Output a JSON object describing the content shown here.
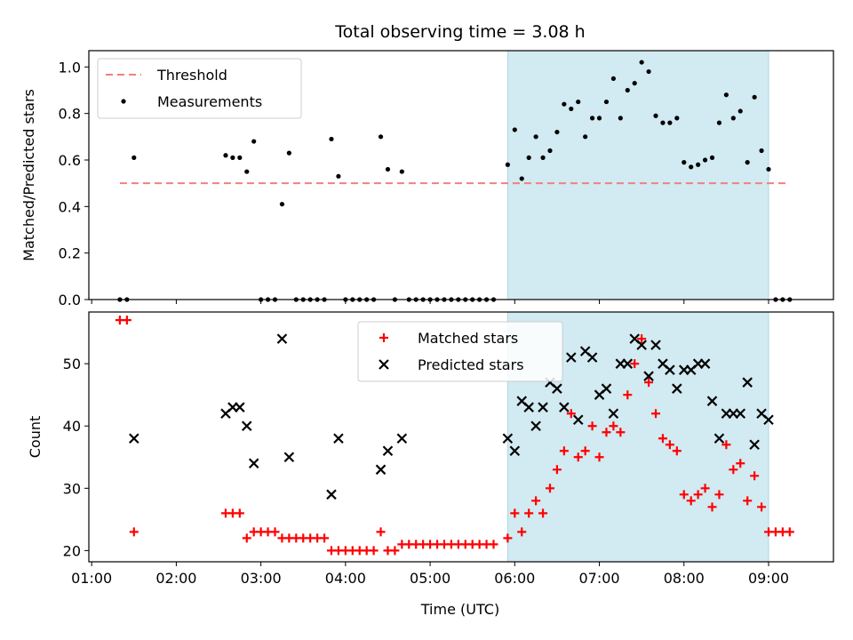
{
  "chart_data": {
    "title": "Total observing time = 3.08 h",
    "xlabel": "Time (UTC)",
    "x_unit": "hours UTC",
    "xlim": [
      "00:58",
      "09:46"
    ],
    "xticks": [
      {
        "t": "01:00",
        "label": "01:00"
      },
      {
        "t": "02:00",
        "label": "02:00"
      },
      {
        "t": "03:00",
        "label": "03:00"
      },
      {
        "t": "04:00",
        "label": "04:00"
      },
      {
        "t": "05:00",
        "label": "05:00"
      },
      {
        "t": "06:00",
        "label": "06:00"
      },
      {
        "t": "07:00",
        "label": "07:00"
      },
      {
        "t": "08:00",
        "label": "08:00"
      },
      {
        "t": "09:00",
        "label": "09:00"
      }
    ],
    "shaded_span": {
      "start": "05:55",
      "end": "09:00",
      "color": "#add8e6"
    },
    "colors": {
      "threshold": "#f08080",
      "measurements": "#000000",
      "matched": "#ff0000",
      "predicted": "#000000"
    },
    "panels": [
      {
        "type": "scatter",
        "ylabel": "Matched/Predicted stars",
        "ylim": [
          0,
          1.07
        ],
        "yticks": [
          {
            "v": 0,
            "label": "0.0"
          },
          {
            "v": 0.2,
            "label": "0.2"
          },
          {
            "v": 0.4,
            "label": "0.4"
          },
          {
            "v": 0.6,
            "label": "0.6"
          },
          {
            "v": 0.8,
            "label": "0.8"
          },
          {
            "v": 1.0,
            "label": "1.0"
          }
        ],
        "legend": {
          "position": "upper left",
          "entries": [
            "Threshold",
            "Measurements"
          ]
        },
        "threshold": {
          "name": "Threshold",
          "y": 0.5,
          "x_range": [
            "01:20",
            "09:13"
          ]
        },
        "series": [
          {
            "name": "Measurements",
            "marker": "dot",
            "points": [
              [
                "01:20",
                0.0
              ],
              [
                "01:25",
                0.0
              ],
              [
                "01:30",
                0.61
              ],
              [
                "02:35",
                0.62
              ],
              [
                "02:40",
                0.61
              ],
              [
                "02:45",
                0.61
              ],
              [
                "02:50",
                0.55
              ],
              [
                "02:55",
                0.68
              ],
              [
                "03:00",
                0.0
              ],
              [
                "03:05",
                0.0
              ],
              [
                "03:10",
                0.0
              ],
              [
                "03:15",
                0.41
              ],
              [
                "03:20",
                0.63
              ],
              [
                "03:25",
                0.0
              ],
              [
                "03:30",
                0.0
              ],
              [
                "03:35",
                0.0
              ],
              [
                "03:40",
                0.0
              ],
              [
                "03:45",
                0.0
              ],
              [
                "03:50",
                0.69
              ],
              [
                "03:55",
                0.53
              ],
              [
                "04:00",
                0.0
              ],
              [
                "04:05",
                0.0
              ],
              [
                "04:10",
                0.0
              ],
              [
                "04:15",
                0.0
              ],
              [
                "04:20",
                0.0
              ],
              [
                "04:25",
                0.7
              ],
              [
                "04:30",
                0.56
              ],
              [
                "04:35",
                0.0
              ],
              [
                "04:40",
                0.55
              ],
              [
                "04:45",
                0.0
              ],
              [
                "04:50",
                0.0
              ],
              [
                "04:55",
                0.0
              ],
              [
                "05:00",
                0.0
              ],
              [
                "05:05",
                0.0
              ],
              [
                "05:10",
                0.0
              ],
              [
                "05:15",
                0.0
              ],
              [
                "05:20",
                0.0
              ],
              [
                "05:25",
                0.0
              ],
              [
                "05:30",
                0.0
              ],
              [
                "05:35",
                0.0
              ],
              [
                "05:40",
                0.0
              ],
              [
                "05:45",
                0.0
              ],
              [
                "05:55",
                0.58
              ],
              [
                "06:00",
                0.73
              ],
              [
                "06:05",
                0.52
              ],
              [
                "06:10",
                0.61
              ],
              [
                "06:15",
                0.7
              ],
              [
                "06:20",
                0.61
              ],
              [
                "06:25",
                0.64
              ],
              [
                "06:30",
                0.72
              ],
              [
                "06:35",
                0.84
              ],
              [
                "06:40",
                0.82
              ],
              [
                "06:45",
                0.85
              ],
              [
                "06:50",
                0.7
              ],
              [
                "06:55",
                0.78
              ],
              [
                "07:00",
                0.78
              ],
              [
                "07:05",
                0.85
              ],
              [
                "07:10",
                0.95
              ],
              [
                "07:15",
                0.78
              ],
              [
                "07:20",
                0.9
              ],
              [
                "07:25",
                0.93
              ],
              [
                "07:30",
                1.02
              ],
              [
                "07:35",
                0.98
              ],
              [
                "07:40",
                0.79
              ],
              [
                "07:45",
                0.76
              ],
              [
                "07:50",
                0.76
              ],
              [
                "07:55",
                0.78
              ],
              [
                "08:00",
                0.59
              ],
              [
                "08:05",
                0.57
              ],
              [
                "08:10",
                0.58
              ],
              [
                "08:15",
                0.6
              ],
              [
                "08:20",
                0.61
              ],
              [
                "08:25",
                0.76
              ],
              [
                "08:30",
                0.88
              ],
              [
                "08:35",
                0.78
              ],
              [
                "08:40",
                0.81
              ],
              [
                "08:45",
                0.59
              ],
              [
                "08:50",
                0.87
              ],
              [
                "08:55",
                0.64
              ],
              [
                "09:00",
                0.56
              ],
              [
                "09:05",
                0.0
              ],
              [
                "09:10",
                0.0
              ],
              [
                "09:15",
                0.0
              ]
            ]
          }
        ]
      },
      {
        "type": "scatter",
        "ylabel": "Count",
        "ylim": [
          18.2,
          58.3
        ],
        "yticks": [
          {
            "v": 20,
            "label": "20"
          },
          {
            "v": 30,
            "label": "30"
          },
          {
            "v": 40,
            "label": "40"
          },
          {
            "v": 50,
            "label": "50"
          }
        ],
        "legend": {
          "position": "upper center",
          "entries": [
            "Matched stars",
            "Predicted stars"
          ]
        },
        "series": [
          {
            "name": "Matched stars",
            "marker": "plus",
            "points": [
              [
                "01:20",
                57
              ],
              [
                "01:25",
                57
              ],
              [
                "01:30",
                23
              ],
              [
                "02:35",
                26
              ],
              [
                "02:40",
                26
              ],
              [
                "02:45",
                26
              ],
              [
                "02:50",
                22
              ],
              [
                "02:55",
                23
              ],
              [
                "03:00",
                23
              ],
              [
                "03:05",
                23
              ],
              [
                "03:10",
                23
              ],
              [
                "03:15",
                22
              ],
              [
                "03:20",
                22
              ],
              [
                "03:25",
                22
              ],
              [
                "03:30",
                22
              ],
              [
                "03:35",
                22
              ],
              [
                "03:40",
                22
              ],
              [
                "03:45",
                22
              ],
              [
                "03:50",
                20
              ],
              [
                "03:55",
                20
              ],
              [
                "04:00",
                20
              ],
              [
                "04:05",
                20
              ],
              [
                "04:10",
                20
              ],
              [
                "04:15",
                20
              ],
              [
                "04:20",
                20
              ],
              [
                "04:25",
                23
              ],
              [
                "04:30",
                20
              ],
              [
                "04:35",
                20
              ],
              [
                "04:40",
                21
              ],
              [
                "04:45",
                21
              ],
              [
                "04:50",
                21
              ],
              [
                "04:55",
                21
              ],
              [
                "05:00",
                21
              ],
              [
                "05:05",
                21
              ],
              [
                "05:10",
                21
              ],
              [
                "05:15",
                21
              ],
              [
                "05:20",
                21
              ],
              [
                "05:25",
                21
              ],
              [
                "05:30",
                21
              ],
              [
                "05:35",
                21
              ],
              [
                "05:40",
                21
              ],
              [
                "05:45",
                21
              ],
              [
                "05:55",
                22
              ],
              [
                "06:00",
                26
              ],
              [
                "06:05",
                23
              ],
              [
                "06:10",
                26
              ],
              [
                "06:15",
                28
              ],
              [
                "06:20",
                26
              ],
              [
                "06:25",
                30
              ],
              [
                "06:30",
                33
              ],
              [
                "06:35",
                36
              ],
              [
                "06:40",
                42
              ],
              [
                "06:45",
                35
              ],
              [
                "06:50",
                36
              ],
              [
                "06:55",
                40
              ],
              [
                "07:00",
                35
              ],
              [
                "07:05",
                39
              ],
              [
                "07:10",
                40
              ],
              [
                "07:15",
                39
              ],
              [
                "07:20",
                45
              ],
              [
                "07:25",
                50
              ],
              [
                "07:30",
                54
              ],
              [
                "07:35",
                47
              ],
              [
                "07:40",
                42
              ],
              [
                "07:45",
                38
              ],
              [
                "07:50",
                37
              ],
              [
                "07:55",
                36
              ],
              [
                "08:00",
                29
              ],
              [
                "08:05",
                28
              ],
              [
                "08:10",
                29
              ],
              [
                "08:15",
                30
              ],
              [
                "08:20",
                27
              ],
              [
                "08:25",
                29
              ],
              [
                "08:30",
                37
              ],
              [
                "08:35",
                33
              ],
              [
                "08:40",
                34
              ],
              [
                "08:45",
                28
              ],
              [
                "08:50",
                32
              ],
              [
                "08:55",
                27
              ],
              [
                "09:00",
                23
              ],
              [
                "09:05",
                23
              ],
              [
                "09:10",
                23
              ],
              [
                "09:15",
                23
              ]
            ]
          },
          {
            "name": "Predicted stars",
            "marker": "x",
            "points": [
              [
                "01:30",
                38
              ],
              [
                "02:35",
                42
              ],
              [
                "02:40",
                43
              ],
              [
                "02:45",
                43
              ],
              [
                "02:50",
                40
              ],
              [
                "02:55",
                34
              ],
              [
                "03:15",
                54
              ],
              [
                "03:20",
                35
              ],
              [
                "03:50",
                29
              ],
              [
                "03:55",
                38
              ],
              [
                "04:25",
                33
              ],
              [
                "04:30",
                36
              ],
              [
                "04:40",
                38
              ],
              [
                "05:55",
                38
              ],
              [
                "06:00",
                36
              ],
              [
                "06:05",
                44
              ],
              [
                "06:10",
                43
              ],
              [
                "06:15",
                40
              ],
              [
                "06:20",
                43
              ],
              [
                "06:25",
                47
              ],
              [
                "06:30",
                46
              ],
              [
                "06:35",
                43
              ],
              [
                "06:40",
                51
              ],
              [
                "06:45",
                41
              ],
              [
                "06:50",
                52
              ],
              [
                "06:55",
                51
              ],
              [
                "07:00",
                45
              ],
              [
                "07:05",
                46
              ],
              [
                "07:10",
                42
              ],
              [
                "07:15",
                50
              ],
              [
                "07:20",
                50
              ],
              [
                "07:25",
                54
              ],
              [
                "07:30",
                53
              ],
              [
                "07:35",
                48
              ],
              [
                "07:40",
                53
              ],
              [
                "07:45",
                50
              ],
              [
                "07:50",
                49
              ],
              [
                "07:55",
                46
              ],
              [
                "08:00",
                49
              ],
              [
                "08:05",
                49
              ],
              [
                "08:10",
                50
              ],
              [
                "08:15",
                50
              ],
              [
                "08:20",
                44
              ],
              [
                "08:25",
                38
              ],
              [
                "08:30",
                42
              ],
              [
                "08:35",
                42
              ],
              [
                "08:40",
                42
              ],
              [
                "08:45",
                47
              ],
              [
                "08:50",
                37
              ],
              [
                "08:55",
                42
              ],
              [
                "09:00",
                41
              ]
            ]
          }
        ]
      }
    ]
  }
}
